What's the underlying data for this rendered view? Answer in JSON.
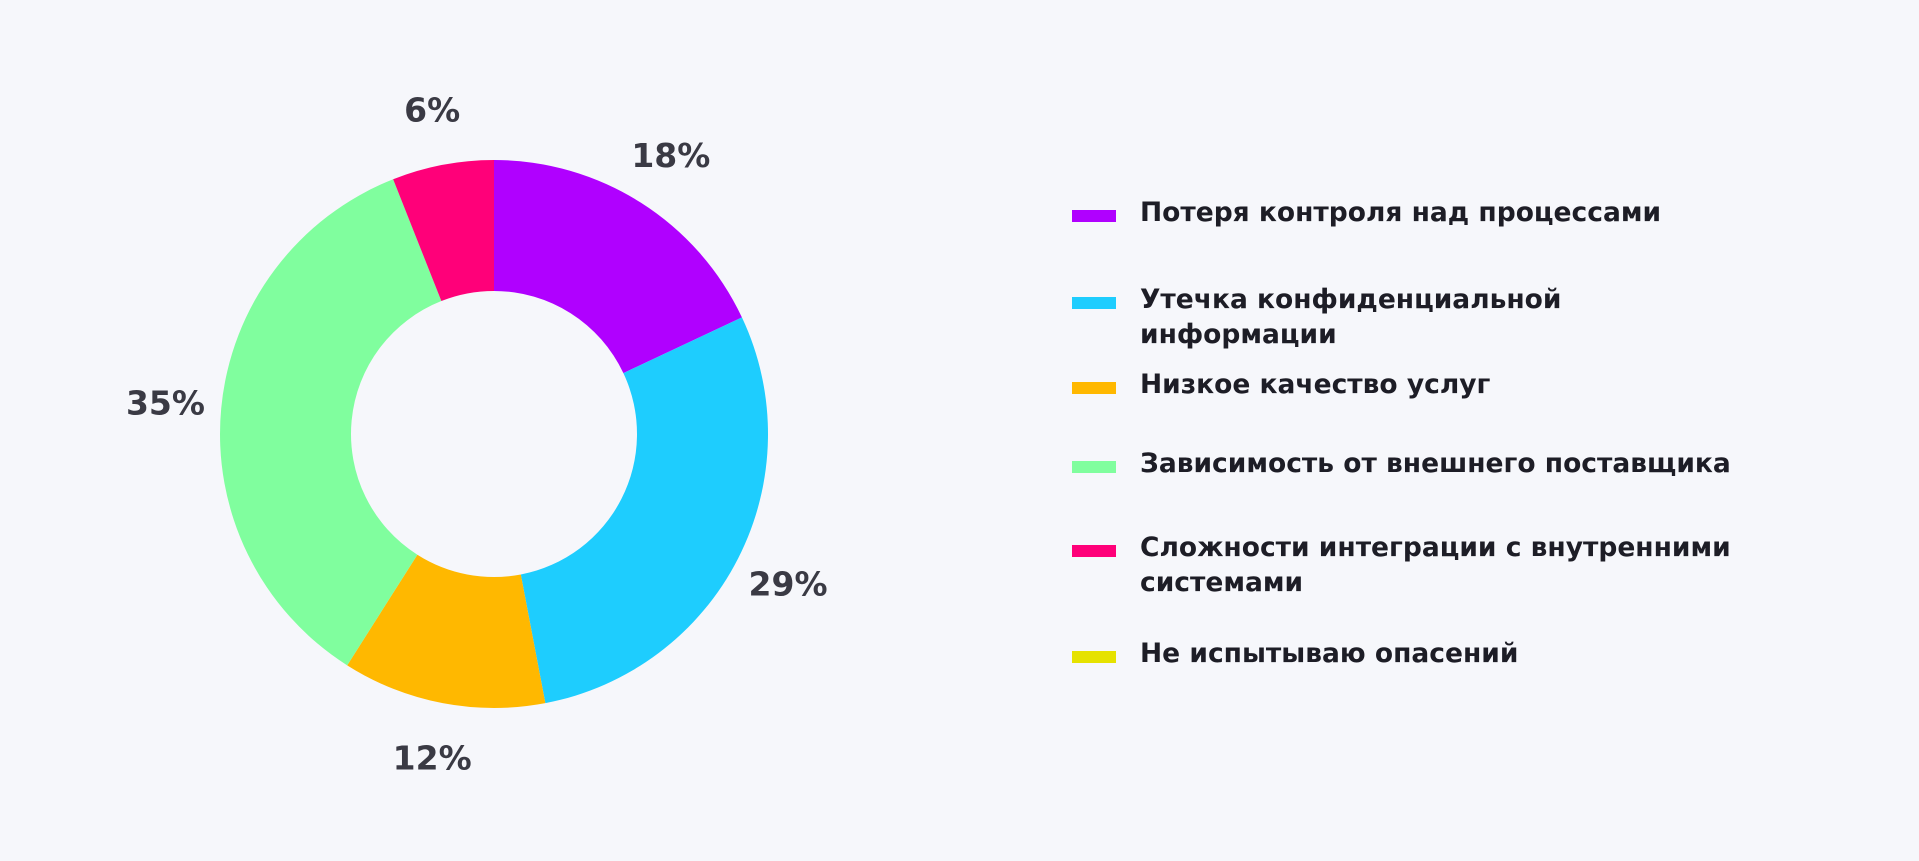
{
  "chart_data": {
    "type": "donut",
    "slices": [
      {
        "name": "Потеря контроля над процессами",
        "value": 18,
        "label": "18%",
        "color": "#b000ff"
      },
      {
        "name": "Утечка конфиденциальной информации",
        "value": 29,
        "label": "29%",
        "color": "#1ecdfe"
      },
      {
        "name": "Низкое качество услуг",
        "value": 12,
        "label": "12%",
        "color": "#ffb800"
      },
      {
        "name": "Зависимость от внешнего поставщика",
        "value": 35,
        "label": "35%",
        "color": "#80fe9e"
      },
      {
        "name": "Сложности интеграции с внутренними системами",
        "value": 6,
        "label": "6%",
        "color": "#ff0079"
      },
      {
        "name": "Не испытываю опасений",
        "value": 0,
        "label": "",
        "color": "#e6e200"
      }
    ],
    "legend_position": "right"
  }
}
